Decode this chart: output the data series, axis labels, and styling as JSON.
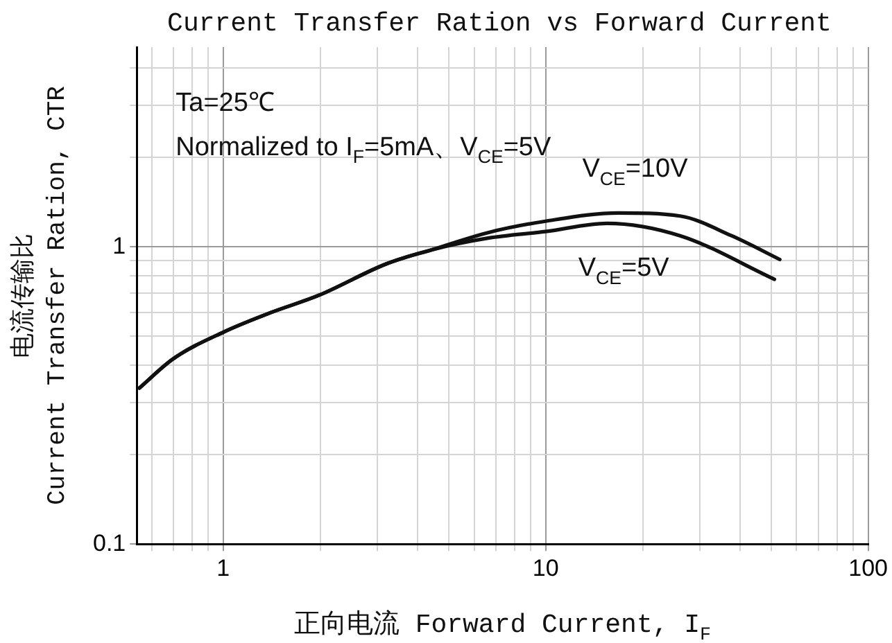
{
  "chart_data": {
    "type": "line",
    "title": "Current Transfer Ration vs Forward Current",
    "xlabel": "正向电流 Forward Current, I$_{F}$",
    "ylabel": "电流传输比\nCurrent Transfer Ration, CTR",
    "annotations": [
      "Ta=25℃",
      "Normalized to I$_{F}$=5mA、V$_{CE}$=5V"
    ],
    "log": "xy",
    "grid": true,
    "legend": false,
    "marker": "none",
    "line_style": "solid",
    "xlim": [
      0.54,
      100
    ],
    "ylim": [
      0.1,
      4.7
    ],
    "xticks": [
      {
        "value": 0.6,
        "label": null
      },
      {
        "value": 0.7,
        "label": null
      },
      {
        "value": 0.8,
        "label": null
      },
      {
        "value": 0.9,
        "label": null
      },
      1,
      {
        "value": 2,
        "label": null
      },
      {
        "value": 3,
        "label": null
      },
      {
        "value": 4,
        "label": null
      },
      {
        "value": 5,
        "label": null
      },
      {
        "value": 6,
        "label": null
      },
      {
        "value": 7,
        "label": null
      },
      {
        "value": 8,
        "label": null
      },
      {
        "value": 9,
        "label": null
      },
      10,
      {
        "value": 20,
        "label": null
      },
      {
        "value": 30,
        "label": null
      },
      {
        "value": 40,
        "label": null
      },
      {
        "value": 50,
        "label": null
      },
      {
        "value": 60,
        "label": null
      },
      {
        "value": 70,
        "label": null
      },
      {
        "value": 80,
        "label": null
      },
      {
        "value": 90,
        "label": null
      },
      100
    ],
    "yticks": [
      0.1,
      {
        "value": 0.2,
        "label": null
      },
      {
        "value": 0.3,
        "label": null
      },
      {
        "value": 0.4,
        "label": null
      },
      {
        "value": 0.5,
        "label": null
      },
      {
        "value": 0.6,
        "label": null
      },
      {
        "value": 0.7,
        "label": null
      },
      {
        "value": 0.8,
        "label": null
      },
      {
        "value": 0.9,
        "label": null
      },
      1,
      {
        "value": 2,
        "label": null
      },
      {
        "value": 3,
        "label": null
      },
      {
        "value": 4,
        "label": null
      }
    ],
    "series": [
      {
        "name": "V$_{CE}$=10V",
        "color": "#111111",
        "x": [
          0.55,
          0.7,
          1,
          1.4,
          1.98,
          3.21,
          4.44,
          6.63,
          10,
          16.8,
          26.1,
          37.7,
          53.2
        ],
        "values": [
          0.335,
          0.42,
          0.516,
          0.6,
          0.687,
          0.877,
          0.978,
          1.117,
          1.22,
          1.3,
          1.27,
          1.09,
          0.907
        ]
      },
      {
        "name": "V$_{CE}$=5V",
        "color": "#111111",
        "x": [
          0.55,
          0.7,
          1,
          1.4,
          1.98,
          3.21,
          4.44,
          6.63,
          10,
          15.5,
          26.1,
          51.2
        ],
        "values": [
          0.335,
          0.42,
          0.516,
          0.6,
          0.687,
          0.877,
          0.978,
          1.07,
          1.126,
          1.2,
          1.09,
          0.778
        ]
      }
    ]
  }
}
